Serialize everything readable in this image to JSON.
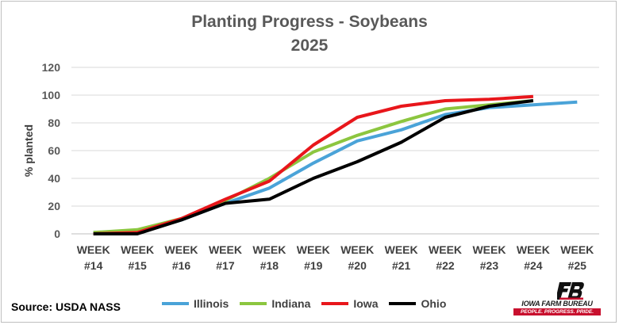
{
  "chart_data": {
    "type": "line",
    "title": "Planting Progress - Soybeans",
    "subtitle": "2025",
    "ylabel": "% planted",
    "ylim": [
      0,
      120
    ],
    "yticks": [
      0,
      20,
      40,
      60,
      80,
      100,
      120
    ],
    "grid": true,
    "legend_position": "bottom",
    "categories": [
      [
        "WEEK",
        "#14"
      ],
      [
        "WEEK",
        "#15"
      ],
      [
        "WEEK",
        "#16"
      ],
      [
        "WEEK",
        "#17"
      ],
      [
        "WEEK",
        "#18"
      ],
      [
        "WEEK",
        "#19"
      ],
      [
        "WEEK",
        "#20"
      ],
      [
        "WEEK",
        "#21"
      ],
      [
        "WEEK",
        "#22"
      ],
      [
        "WEEK",
        "#23"
      ],
      [
        "WEEK",
        "#24"
      ],
      [
        "WEEK",
        "#25"
      ]
    ],
    "series": [
      {
        "name": "Illinois",
        "color": "#4aa3d8",
        "values": [
          1,
          2,
          10,
          22,
          33,
          51,
          67,
          75,
          86,
          91,
          93,
          95
        ]
      },
      {
        "name": "Indiana",
        "color": "#8cc63f",
        "values": [
          1,
          3,
          11,
          24,
          40,
          59,
          71,
          81,
          90,
          93,
          96,
          null
        ]
      },
      {
        "name": "Iowa",
        "color": "#e8161b",
        "values": [
          0,
          1,
          11,
          25,
          38,
          64,
          84,
          92,
          96,
          97,
          99,
          null
        ]
      },
      {
        "name": "Ohio",
        "color": "#000000",
        "values": [
          0,
          0,
          10,
          22,
          25,
          40,
          52,
          66,
          84,
          92,
          96,
          null
        ]
      }
    ]
  },
  "source_text": "Source: USDA NASS",
  "logo": {
    "name": "IOWA FARM BUREAU",
    "tagline": "PEOPLE. PROGRESS. PRIDE.",
    "brand_color": "#c8102e"
  }
}
